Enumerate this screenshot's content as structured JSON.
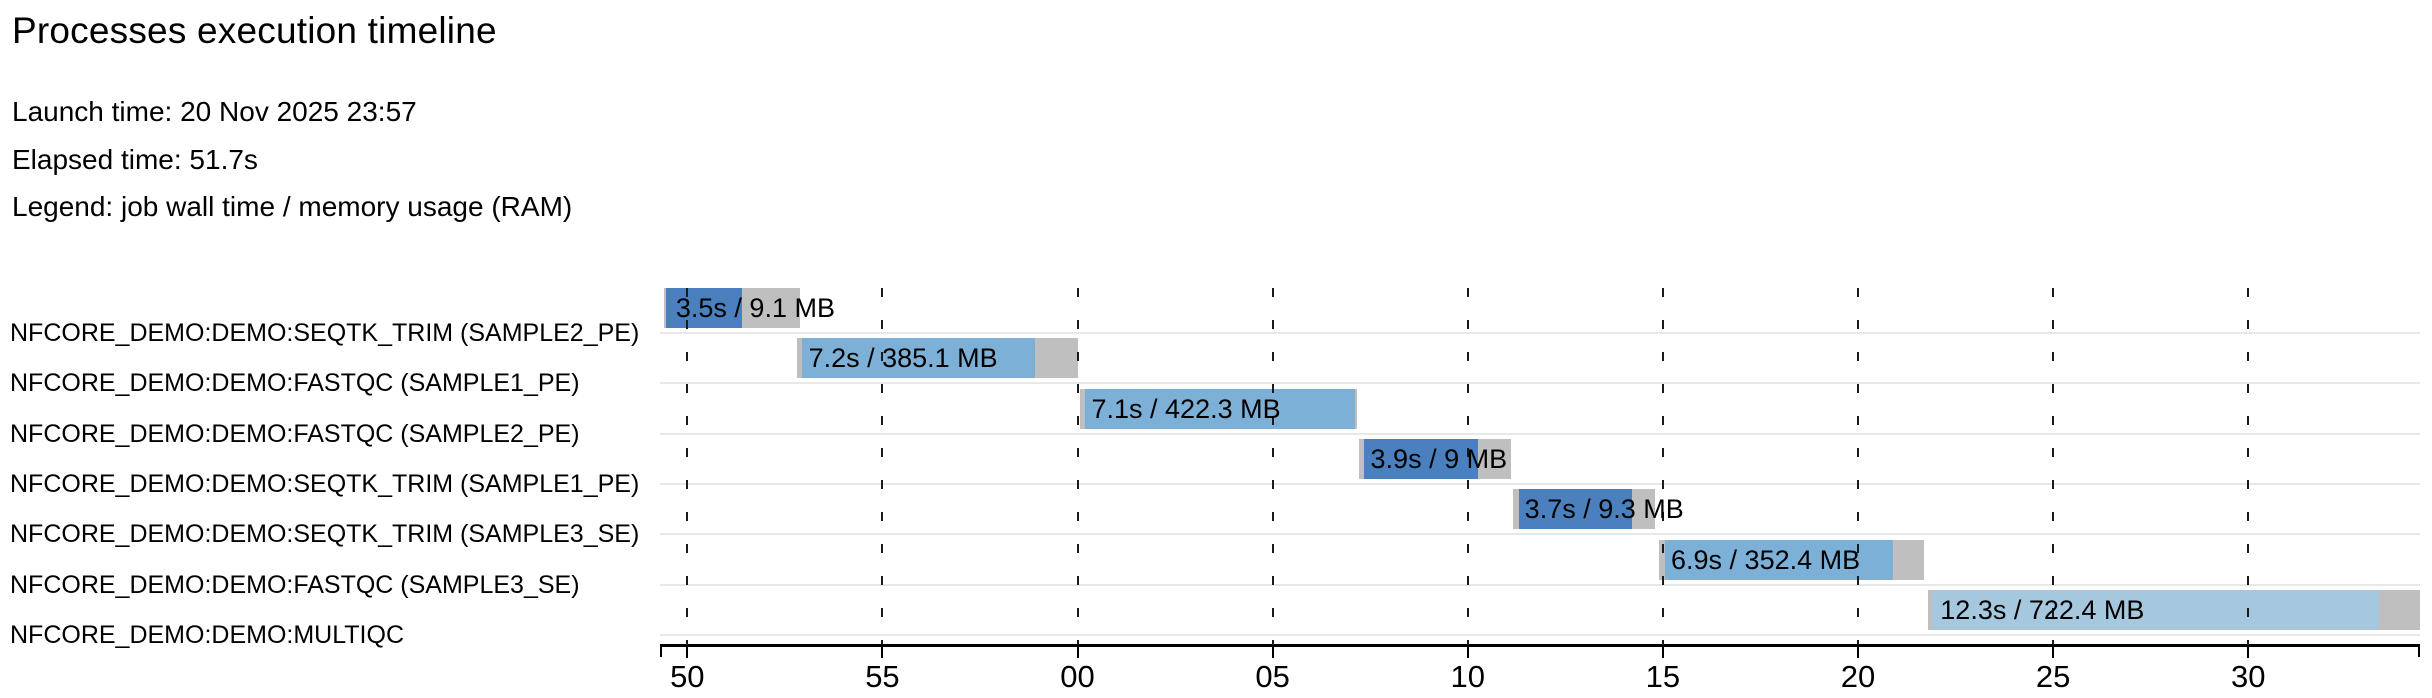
{
  "page": {
    "title": "Processes execution timeline",
    "meta_lines": [
      "Launch time: 20 Nov 2025 23:57",
      "Elapsed time: 51.7s",
      "Legend: job wall time / memory usage (RAM)"
    ]
  },
  "colors": {
    "bar_dark_blue": "#4a80bd",
    "bar_light_blue": "#7cb0d6",
    "bar_pale_blue": "#a5c8df",
    "bar_gray": "#bfbfbf",
    "row_separator": "#e8e8e8",
    "gridline": "#1a1a1a",
    "axis": "#000000",
    "text": "#000000"
  },
  "chart_data": {
    "type": "bar",
    "variant": "gantt-timeline",
    "title": "Processes execution timeline",
    "xlabel": "",
    "ylabel": "",
    "x_unit": "seconds after 23:57:00 (tick labels show seconds within the minute)",
    "x_domain": [
      49.3,
      94.4
    ],
    "grid": "dashed-vertical",
    "legend_position": "none",
    "x_ticks": [
      {
        "t": 50,
        "label": "50"
      },
      {
        "t": 55,
        "label": "55"
      },
      {
        "t": 60,
        "label": "00"
      },
      {
        "t": 65,
        "label": "05"
      },
      {
        "t": 70,
        "label": "10"
      },
      {
        "t": 75,
        "label": "15"
      },
      {
        "t": 80,
        "label": "20"
      },
      {
        "t": 85,
        "label": "25"
      },
      {
        "t": 90,
        "label": "30"
      }
    ],
    "tasks": [
      {
        "process": "NFCORE_DEMO:DEMO:SEQTK_TRIM (SAMPLE2_PE)",
        "bar_label": "3.5s / 9.1 MB",
        "wall_time_s": 3.5,
        "memory": "9.1 MB",
        "shade": "dark",
        "start_s": 49.4,
        "run_start_s": 49.45,
        "run_end_s": 51.4,
        "end_s": 52.9
      },
      {
        "process": "NFCORE_DEMO:DEMO:FASTQC (SAMPLE1_PE)",
        "bar_label": "7.2s / 385.1 MB",
        "wall_time_s": 7.2,
        "memory": "385.1 MB",
        "shade": "light",
        "start_s": 52.8,
        "run_start_s": 52.95,
        "run_end_s": 58.9,
        "end_s": 60.0
      },
      {
        "process": "NFCORE_DEMO:DEMO:FASTQC (SAMPLE2_PE)",
        "bar_label": "7.1s / 422.3 MB",
        "wall_time_s": 7.1,
        "memory": "422.3 MB",
        "shade": "light",
        "start_s": 60.05,
        "run_start_s": 60.2,
        "run_end_s": 67.1,
        "end_s": 67.15
      },
      {
        "process": "NFCORE_DEMO:DEMO:SEQTK_TRIM (SAMPLE1_PE)",
        "bar_label": "3.9s / 9 MB",
        "wall_time_s": 3.9,
        "memory": "9 MB",
        "shade": "dark",
        "start_s": 67.2,
        "run_start_s": 67.35,
        "run_end_s": 70.25,
        "end_s": 71.1
      },
      {
        "process": "NFCORE_DEMO:DEMO:SEQTK_TRIM (SAMPLE3_SE)",
        "bar_label": "3.7s / 9.3 MB",
        "wall_time_s": 3.7,
        "memory": "9.3 MB",
        "shade": "dark",
        "start_s": 71.15,
        "run_start_s": 71.3,
        "run_end_s": 74.2,
        "end_s": 74.8
      },
      {
        "process": "NFCORE_DEMO:DEMO:FASTQC (SAMPLE3_SE)",
        "bar_label": "6.9s / 352.4 MB",
        "wall_time_s": 6.9,
        "memory": "352.4 MB",
        "shade": "light",
        "start_s": 74.9,
        "run_start_s": 75.05,
        "run_end_s": 80.9,
        "end_s": 81.7
      },
      {
        "process": "NFCORE_DEMO:DEMO:MULTIQC",
        "bar_label": "12.3s / 722.4 MB",
        "wall_time_s": 12.3,
        "memory": "722.4 MB",
        "shade": "pale",
        "start_s": 81.8,
        "run_start_s": 81.9,
        "run_end_s": 93.35,
        "end_s": 94.4
      }
    ]
  }
}
